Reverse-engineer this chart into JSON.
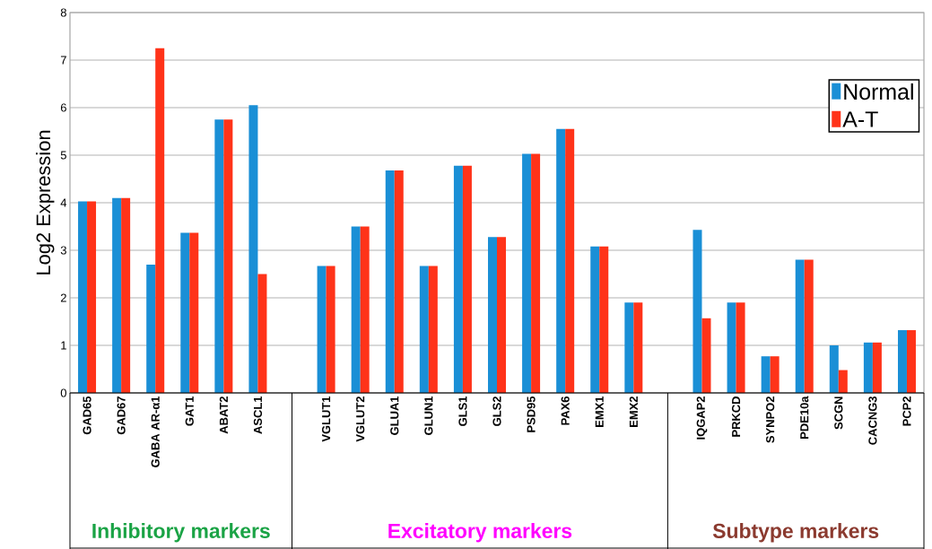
{
  "chart_data": {
    "type": "bar",
    "ylabel": "Log2 Expression",
    "categories": [
      "GAD65",
      "GAD67",
      "GABA AR-α1",
      "GAT1",
      "ABAT2",
      "ASCL1",
      null,
      "VGLUT1",
      "VGLUT2",
      "GLUA1",
      "GLUN1",
      "GLS1",
      "GLS2",
      "PSD95",
      "PAX6",
      "EMX1",
      "EMX2",
      null,
      "IQGAP2",
      "PRKCD",
      "SYNPO2",
      "PDE10a",
      "SCGN",
      "CACNG3",
      "PCP2"
    ],
    "series": [
      {
        "name": "Normal",
        "color": "#1a8fd6",
        "values": [
          4.03,
          4.1,
          2.7,
          3.37,
          5.75,
          6.05,
          null,
          2.67,
          3.5,
          4.68,
          2.67,
          4.78,
          3.28,
          5.03,
          5.55,
          3.08,
          1.9,
          null,
          3.43,
          1.9,
          0.77,
          2.8,
          1.0,
          1.06,
          1.32
        ]
      },
      {
        "name": "A-T",
        "color": "#ff3319",
        "values": [
          4.03,
          4.1,
          7.25,
          3.37,
          5.75,
          2.5,
          null,
          2.67,
          3.5,
          4.68,
          2.67,
          4.78,
          3.28,
          5.03,
          5.55,
          3.08,
          1.9,
          null,
          1.57,
          1.9,
          0.77,
          2.8,
          0.48,
          1.06,
          1.32
        ]
      }
    ],
    "ylim": [
      0,
      8
    ],
    "yticks": [
      0,
      1,
      2,
      3,
      4,
      5,
      6,
      7,
      8
    ],
    "grid": "y",
    "legend": "top right",
    "annotations": [
      "Inhibitory markers",
      "Excitatory markers",
      "Subtype markers"
    ]
  }
}
